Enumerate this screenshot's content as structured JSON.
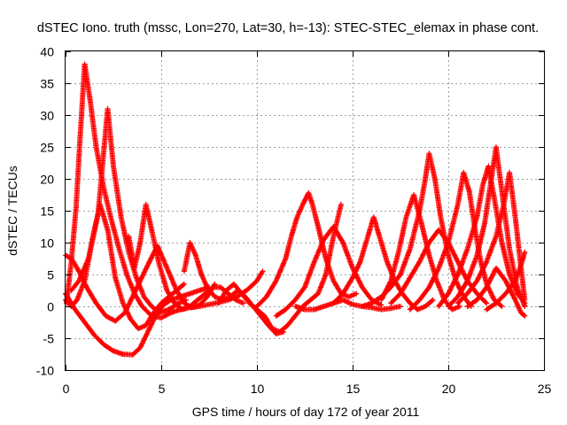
{
  "chart_data": {
    "type": "scatter",
    "title": "dSTEC Iono. truth (mssc, Lon=270, Lat=30, h=-13): STEC-STEC_elemax in phase cont.",
    "xlabel": "GPS time / hours of day 172 of year 2011",
    "ylabel": "dSTEC  / TECUs",
    "xlim": [
      0,
      25
    ],
    "ylim": [
      -10,
      40
    ],
    "xticks": [
      0,
      5,
      10,
      15,
      20,
      25
    ],
    "yticks": [
      -10,
      -5,
      0,
      5,
      10,
      15,
      20,
      25,
      30,
      35,
      40
    ],
    "grid": true,
    "marker": "+",
    "color": "#ff0000",
    "series": [
      {
        "x": [
          0.05,
          0.3,
          0.55,
          0.75,
          1.0,
          1.3,
          1.6,
          2.0,
          2.4,
          2.8,
          3.2,
          3.6,
          4.0,
          4.5,
          5.0,
          5.5,
          6.0,
          6.5,
          7.0,
          7.5,
          8.0,
          8.5,
          9.0,
          9.5,
          10.0,
          10.3
        ],
        "y": [
          0.5,
          7.0,
          15.5,
          26.0,
          38.0,
          32.0,
          25.0,
          18.5,
          13.5,
          9.0,
          5.0,
          2.0,
          0.0,
          -1.5,
          -1.8,
          -1.0,
          -0.5,
          -0.2,
          0.0,
          0.3,
          0.6,
          1.0,
          1.6,
          2.6,
          4.0,
          5.5
        ]
      },
      {
        "x": [
          0.0,
          0.3,
          0.7,
          1.1,
          1.6,
          2.1,
          2.6,
          3.1,
          3.5,
          3.9,
          4.3,
          4.8,
          5.3,
          5.8,
          6.2,
          6.6,
          7.0,
          7.4,
          7.8
        ],
        "y": [
          8.0,
          7.5,
          5.5,
          3.0,
          0.5,
          -1.5,
          -2.3,
          -1.0,
          1.5,
          4.0,
          6.5,
          9.5,
          6.0,
          2.5,
          0.5,
          -0.2,
          0.2,
          1.5,
          3.5
        ]
      },
      {
        "x": [
          0.0,
          0.3,
          0.6,
          1.0,
          1.4,
          1.8,
          2.2,
          2.6,
          3.0,
          3.4,
          3.8,
          4.2,
          4.6,
          5.0,
          5.4,
          5.8,
          6.2
        ],
        "y": [
          1.0,
          0.0,
          1.0,
          4.0,
          10.5,
          16.0,
          12.0,
          4.5,
          0.5,
          -2.0,
          -3.5,
          -3.0,
          -1.0,
          0.5,
          1.5,
          2.5,
          3.5
        ]
      },
      {
        "x": [
          0.0,
          0.5,
          1.0,
          1.5,
          2.0,
          2.5,
          3.0,
          3.5,
          3.9,
          4.3,
          4.7,
          5.1,
          5.5,
          6.0,
          6.5,
          7.0,
          7.5
        ],
        "y": [
          2.0,
          -0.5,
          -2.5,
          -4.5,
          -6.0,
          -7.0,
          -7.5,
          -7.6,
          -6.5,
          -4.0,
          -1.5,
          0.2,
          1.0,
          1.5,
          2.0,
          2.5,
          3.0
        ]
      },
      {
        "x": [
          0.3,
          0.7,
          1.2,
          1.7,
          2.2,
          2.5,
          2.9,
          3.3,
          3.7,
          4.1,
          4.5,
          4.9,
          5.4,
          5.9,
          6.3
        ],
        "y": [
          2.5,
          4.0,
          7.5,
          14.5,
          31.0,
          22.0,
          14.0,
          8.5,
          4.5,
          1.5,
          0.0,
          -1.0,
          -0.5,
          0.5,
          1.0
        ]
      },
      {
        "x": [
          3.3,
          3.6,
          3.9,
          4.2,
          4.5,
          4.9,
          5.3,
          5.7,
          6.1,
          6.5,
          6.9,
          7.3,
          7.7,
          8.1,
          8.5,
          8.9,
          9.3
        ],
        "y": [
          11.0,
          6.0,
          10.0,
          16.0,
          12.0,
          6.5,
          2.5,
          0.5,
          -0.5,
          0.0,
          1.0,
          2.0,
          3.0,
          3.0,
          2.0,
          1.0,
          0.5
        ]
      },
      {
        "x": [
          6.2,
          6.5,
          6.8,
          7.1,
          7.4,
          7.8,
          8.2,
          8.6,
          9.0,
          9.4,
          9.8,
          10.2,
          10.6,
          11.0,
          11.4
        ],
        "y": [
          5.5,
          10.0,
          8.0,
          5.0,
          3.0,
          1.5,
          1.0,
          1.5,
          2.5,
          1.5,
          0.0,
          -1.5,
          -3.0,
          -4.3,
          -4.0
        ]
      },
      {
        "x": [
          8.0,
          8.4,
          8.8,
          9.2,
          9.6,
          10.0,
          10.4,
          10.8,
          11.2,
          11.6,
          12.0,
          12.4,
          12.8,
          13.2,
          13.6,
          14.0,
          14.4
        ],
        "y": [
          0.5,
          2.5,
          3.5,
          2.0,
          0.5,
          -0.5,
          -1.5,
          -3.5,
          -4.0,
          -3.0,
          -1.5,
          0.0,
          1.0,
          2.0,
          5.0,
          11.0,
          16.0
        ]
      },
      {
        "x": [
          10.0,
          10.5,
          11.0,
          11.5,
          11.8,
          12.1,
          12.4,
          12.7,
          12.9,
          13.2,
          13.6,
          14.0,
          14.4,
          14.8,
          15.2
        ],
        "y": [
          0.0,
          1.5,
          4.0,
          7.5,
          11.0,
          14.0,
          16.0,
          17.8,
          16.0,
          12.5,
          7.5,
          4.0,
          2.0,
          1.5,
          2.0
        ]
      },
      {
        "x": [
          11.0,
          11.5,
          12.0,
          12.5,
          13.0,
          13.5,
          14.0,
          14.5,
          15.0,
          15.5,
          16.0,
          16.5
        ],
        "y": [
          -1.5,
          -0.5,
          1.0,
          3.0,
          7.0,
          10.5,
          12.5,
          10.0,
          6.0,
          3.0,
          1.0,
          0.2
        ]
      },
      {
        "x": [
          12.0,
          12.5,
          13.0,
          13.5,
          14.0,
          14.5,
          15.0,
          15.5,
          16.0,
          16.5,
          17.0,
          17.5
        ],
        "y": [
          0.0,
          -0.5,
          -0.5,
          0.0,
          0.5,
          1.0,
          0.3,
          0.0,
          -0.2,
          -0.5,
          -0.3,
          0.0
        ]
      },
      {
        "x": [
          14.0,
          14.5,
          15.0,
          15.4,
          15.8,
          16.1,
          16.4,
          16.8,
          17.2,
          17.6,
          18.0,
          18.4,
          18.8,
          19.2
        ],
        "y": [
          0.5,
          2.0,
          4.5,
          7.0,
          11.0,
          14.0,
          11.0,
          7.0,
          4.0,
          2.0,
          0.5,
          -0.5,
          0.0,
          1.0
        ]
      },
      {
        "x": [
          15.5,
          16.0,
          16.5,
          17.0,
          17.5,
          18.0,
          18.5,
          18.8,
          19.0,
          19.3,
          19.6,
          20.0,
          20.4,
          20.8,
          21.2
        ],
        "y": [
          0.0,
          0.5,
          1.5,
          3.0,
          5.0,
          9.0,
          15.0,
          20.0,
          24.0,
          20.0,
          14.0,
          8.0,
          4.0,
          1.5,
          0.0
        ]
      },
      {
        "x": [
          16.5,
          17.0,
          17.4,
          17.8,
          18.2,
          18.6,
          19.0,
          19.4,
          19.8,
          20.2,
          20.6
        ],
        "y": [
          1.0,
          4.0,
          8.5,
          14.0,
          17.5,
          13.0,
          8.0,
          4.0,
          1.0,
          -0.5,
          0.0
        ]
      },
      {
        "x": [
          17.0,
          17.5,
          18.0,
          18.5,
          19.0,
          19.5,
          20.0,
          20.5,
          21.0,
          21.5,
          22.0
        ],
        "y": [
          0.5,
          2.0,
          4.5,
          7.0,
          10.0,
          12.0,
          10.0,
          7.0,
          4.0,
          2.0,
          0.5
        ]
      },
      {
        "x": [
          18.0,
          18.5,
          19.0,
          19.5,
          20.0,
          20.5,
          20.8,
          21.1,
          21.4,
          21.7,
          22.0,
          22.4,
          22.8
        ],
        "y": [
          -0.5,
          1.0,
          3.0,
          6.0,
          10.0,
          16.0,
          21.0,
          18.0,
          12.0,
          7.0,
          3.5,
          1.0,
          0.0
        ]
      },
      {
        "x": [
          19.5,
          20.0,
          20.5,
          21.0,
          21.5,
          21.8,
          22.1,
          22.4,
          22.8,
          23.2,
          23.6,
          24.0
        ],
        "y": [
          0.0,
          2.0,
          5.0,
          9.0,
          14.0,
          19.0,
          22.0,
          17.0,
          10.0,
          5.0,
          2.0,
          0.5
        ]
      },
      {
        "x": [
          20.0,
          20.5,
          21.0,
          21.5,
          21.9,
          22.2,
          22.5,
          22.8,
          23.2,
          23.6,
          24.0
        ],
        "y": [
          0.0,
          1.5,
          4.0,
          8.0,
          13.0,
          19.0,
          25.0,
          18.0,
          9.0,
          3.0,
          0.0
        ]
      },
      {
        "x": [
          20.5,
          21.0,
          21.5,
          22.0,
          22.5,
          22.9,
          23.2,
          23.5,
          23.8,
          24.0
        ],
        "y": [
          0.5,
          2.0,
          4.0,
          7.0,
          11.0,
          16.0,
          21.0,
          14.0,
          6.0,
          1.0
        ]
      },
      {
        "x": [
          21.0,
          21.5,
          22.0,
          22.5,
          23.0,
          23.5,
          23.8,
          24.0
        ],
        "y": [
          0.0,
          1.0,
          3.0,
          6.0,
          4.0,
          1.0,
          -1.0,
          -1.5
        ]
      },
      {
        "x": [
          22.0,
          22.5,
          23.0,
          23.5,
          23.8,
          24.0
        ],
        "y": [
          -0.5,
          0.5,
          2.0,
          4.0,
          6.5,
          8.5
        ]
      }
    ]
  }
}
